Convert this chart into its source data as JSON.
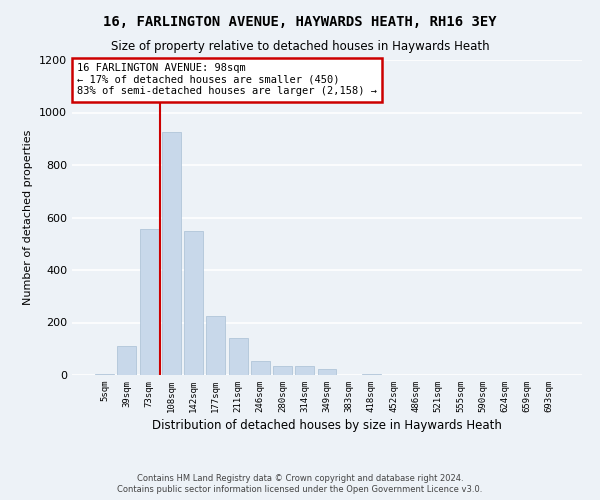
{
  "title": "16, FARLINGTON AVENUE, HAYWARDS HEATH, RH16 3EY",
  "subtitle": "Size of property relative to detached houses in Haywards Heath",
  "xlabel": "Distribution of detached houses by size in Haywards Heath",
  "ylabel": "Number of detached properties",
  "bar_color": "#c8d8ea",
  "bar_edge_color": "#a8bfd4",
  "categories": [
    "5sqm",
    "39sqm",
    "73sqm",
    "108sqm",
    "142sqm",
    "177sqm",
    "211sqm",
    "246sqm",
    "280sqm",
    "314sqm",
    "349sqm",
    "383sqm",
    "418sqm",
    "452sqm",
    "486sqm",
    "521sqm",
    "555sqm",
    "590sqm",
    "624sqm",
    "659sqm",
    "693sqm"
  ],
  "values": [
    5,
    110,
    555,
    925,
    550,
    225,
    140,
    55,
    33,
    35,
    22,
    0,
    5,
    0,
    0,
    0,
    0,
    0,
    0,
    0,
    0
  ],
  "ylim": [
    0,
    1200
  ],
  "yticks": [
    0,
    200,
    400,
    600,
    800,
    1000,
    1200
  ],
  "annotation_line1": "16 FARLINGTON AVENUE: 98sqm",
  "annotation_line2": "← 17% of detached houses are smaller (450)",
  "annotation_line3": "83% of semi-detached houses are larger (2,158) →",
  "annotation_box_facecolor": "#ffffff",
  "annotation_box_edgecolor": "#cc0000",
  "vline_color": "#cc0000",
  "footer_line1": "Contains HM Land Registry data © Crown copyright and database right 2024.",
  "footer_line2": "Contains public sector information licensed under the Open Government Licence v3.0.",
  "background_color": "#edf2f7",
  "grid_color": "#ffffff"
}
